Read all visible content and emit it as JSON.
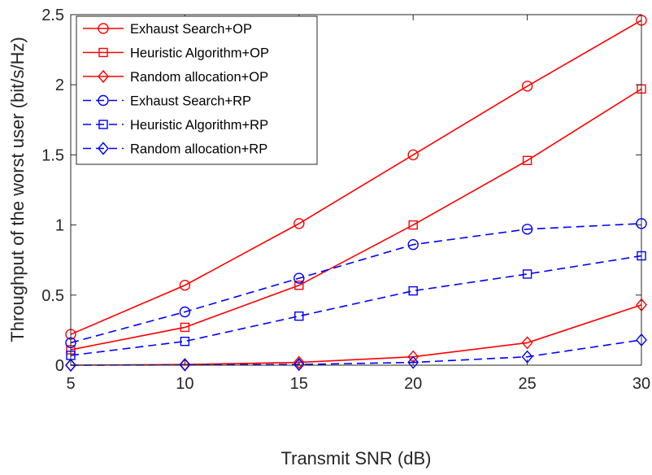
{
  "chart_data": {
    "type": "line",
    "title": "",
    "xlabel": "Transmit SNR (dB)",
    "ylabel": "Throughput of the worst user (bit/s/Hz)",
    "xlim": [
      5,
      30
    ],
    "ylim": [
      0,
      2.5
    ],
    "x": [
      5,
      10,
      15,
      20,
      25,
      30
    ],
    "xticks": [
      "5",
      "10",
      "15",
      "20",
      "25",
      "30"
    ],
    "yticks": [
      "0",
      "0.5",
      "1",
      "1.5",
      "2",
      "2.5"
    ],
    "grid": false,
    "legend_position": "top-left",
    "series": [
      {
        "name": "Exhaust Search+OP",
        "color": "#ff0000",
        "dash": "solid",
        "marker": "circle",
        "values": [
          0.22,
          0.57,
          1.01,
          1.5,
          1.99,
          2.46
        ]
      },
      {
        "name": "Heuristic Algorithm+OP",
        "color": "#ff0000",
        "dash": "solid",
        "marker": "square",
        "values": [
          0.11,
          0.27,
          0.57,
          1.0,
          1.46,
          1.97
        ]
      },
      {
        "name": "Random allocation+OP",
        "color": "#ff0000",
        "dash": "solid",
        "marker": "diamond",
        "values": [
          0.0,
          0.005,
          0.02,
          0.06,
          0.16,
          0.43
        ]
      },
      {
        "name": "Exhaust Search+RP",
        "color": "#0000ff",
        "dash": "dashed",
        "marker": "circle",
        "values": [
          0.16,
          0.38,
          0.62,
          0.86,
          0.97,
          1.01
        ]
      },
      {
        "name": "Heuristic Algorithm+RP",
        "color": "#0000ff",
        "dash": "dashed",
        "marker": "square",
        "values": [
          0.07,
          0.17,
          0.35,
          0.53,
          0.65,
          0.78
        ]
      },
      {
        "name": "Random allocation+RP",
        "color": "#0000ff",
        "dash": "dashed",
        "marker": "diamond",
        "values": [
          0.0,
          0.002,
          0.005,
          0.02,
          0.06,
          0.18
        ]
      }
    ]
  }
}
